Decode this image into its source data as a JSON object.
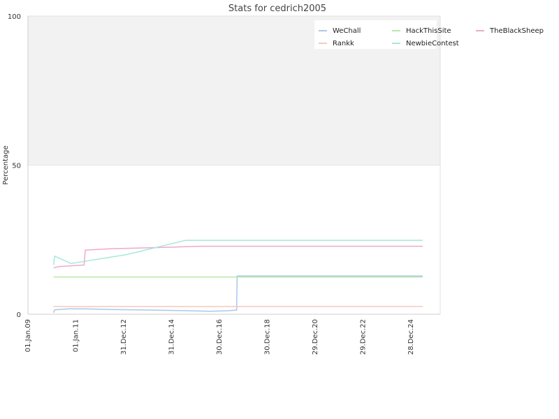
{
  "chart_data": {
    "type": "line",
    "title": "Stats for cedrich2005",
    "ylabel": "Percentage",
    "xlabel": "",
    "ylim": [
      0,
      100
    ],
    "y_ticks": [
      "0",
      "50",
      "100"
    ],
    "x_ticks": [
      "01.Jan.09",
      "01.Jan.11",
      "31.Dec.12",
      "31.Dec.14",
      "30.Dec.16",
      "30.Dec.18",
      "29.Dec.20",
      "29.Dec.22",
      "28.Dec.24"
    ],
    "xlim": [
      "2009-01-01",
      "2025-10-01"
    ],
    "background_band": {
      "from": 50,
      "to": 100,
      "color": "#f2f2f2"
    },
    "grid": false,
    "legend_position": "top-right",
    "series": [
      {
        "name": "WeChall",
        "color": "#a8c8ec",
        "points": [
          [
            "2010-01-15",
            0.5
          ],
          [
            "2010-02-01",
            1.5
          ],
          [
            "2010-09-01",
            1.8
          ],
          [
            "2011-06-01",
            1.8
          ],
          [
            "2012-06-01",
            1.6
          ],
          [
            "2014-01-01",
            1.4
          ],
          [
            "2015-06-01",
            1.2
          ],
          [
            "2016-06-01",
            1.0
          ],
          [
            "2017-03-01",
            1.2
          ],
          [
            "2017-06-25",
            1.4
          ],
          [
            "2017-07-01",
            12.8
          ],
          [
            "2025-01-15",
            12.8
          ]
        ]
      },
      {
        "name": "HackThisSite",
        "color": "#b8e8a8",
        "points": [
          [
            "2010-01-15",
            12.5
          ],
          [
            "2017-07-01",
            12.5
          ],
          [
            "2025-01-15",
            12.5
          ]
        ]
      },
      {
        "name": "TheBlackSheep",
        "color": "#f0a8cc",
        "points": [
          [
            "2010-01-15",
            15.5
          ],
          [
            "2010-04-01",
            16.0
          ],
          [
            "2011-04-15",
            16.5
          ],
          [
            "2011-05-01",
            21.5
          ],
          [
            "2012-06-01",
            22.0
          ],
          [
            "2014-01-01",
            22.3
          ],
          [
            "2016-01-01",
            22.8
          ],
          [
            "2025-01-15",
            22.8
          ]
        ]
      },
      {
        "name": "Rankk",
        "color": "#f6c8c0",
        "points": [
          [
            "2010-01-15",
            2.6
          ],
          [
            "2017-07-01",
            2.6
          ],
          [
            "2025-01-15",
            2.6
          ]
        ]
      },
      {
        "name": "NewbieContest",
        "color": "#a8e8d8",
        "points": [
          [
            "2010-01-15",
            16.5
          ],
          [
            "2010-02-01",
            19.5
          ],
          [
            "2010-10-01",
            17.0
          ],
          [
            "2013-01-01",
            20.0
          ],
          [
            "2015-06-01",
            24.8
          ],
          [
            "2025-01-15",
            24.8
          ]
        ]
      }
    ]
  }
}
